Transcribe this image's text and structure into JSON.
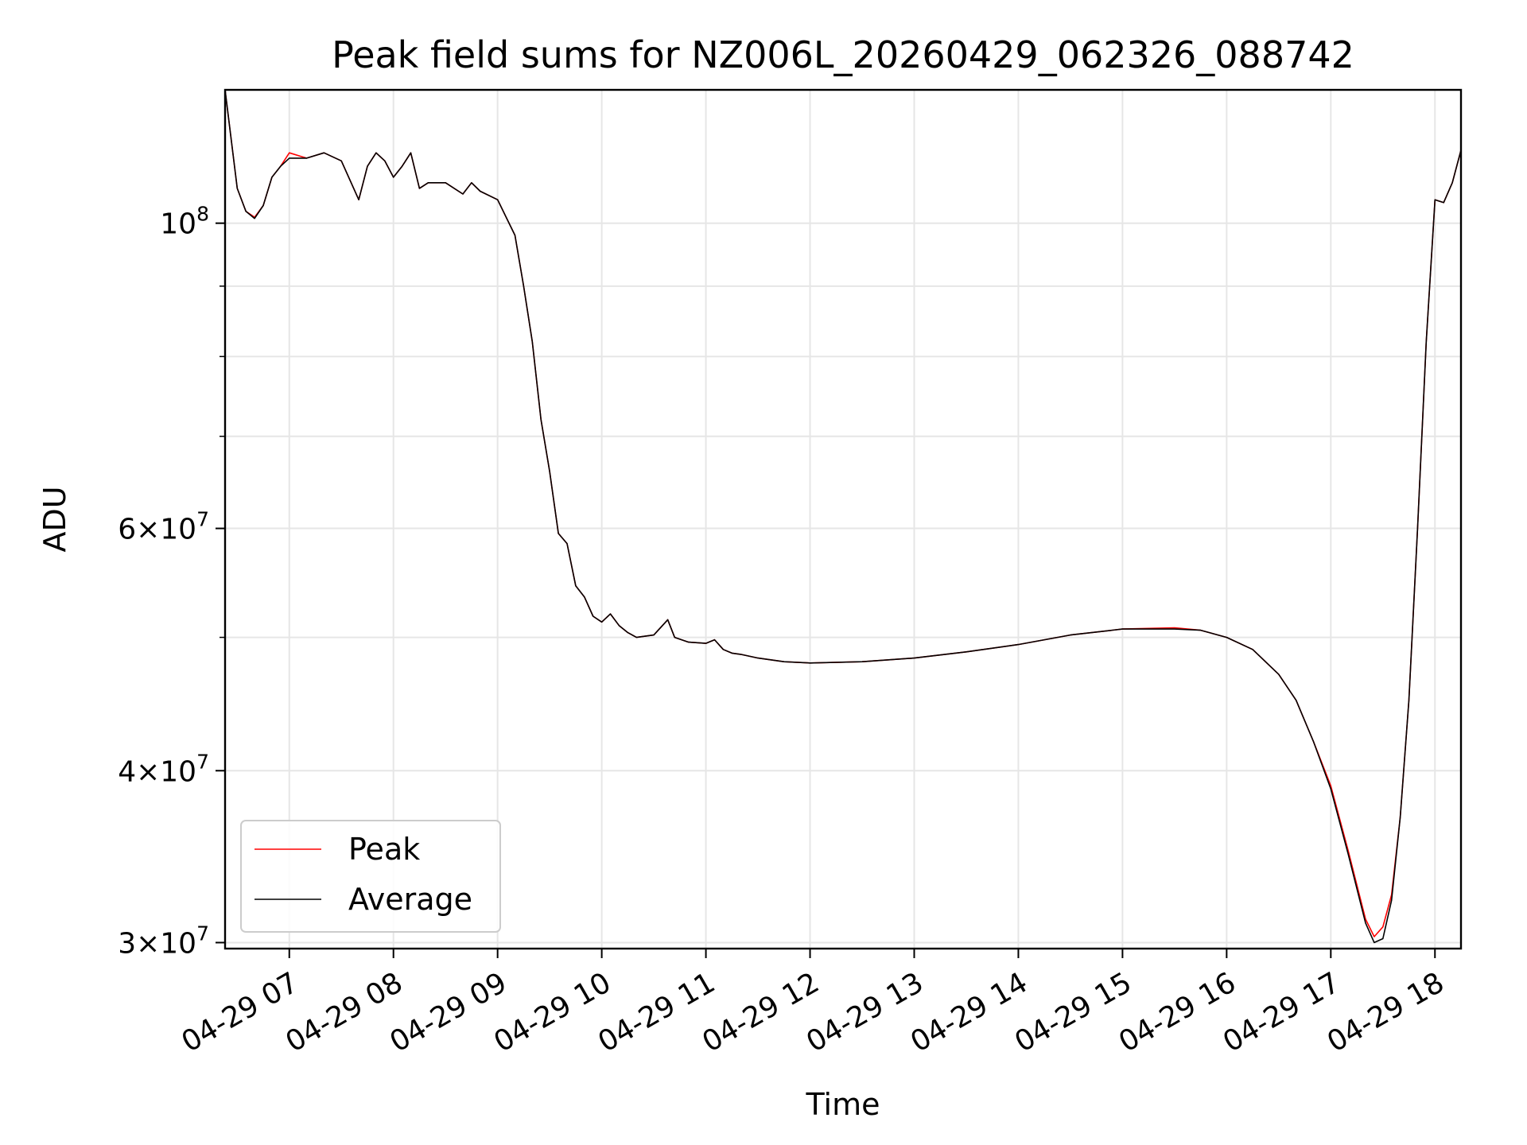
{
  "chart_data": {
    "type": "line",
    "title": "Peak field sums for NZ006L_20260429_062326_088742",
    "xlabel": "Time",
    "ylabel": "ADU",
    "yscale": "log",
    "grid": true,
    "legend_position": "lower-left",
    "xlim": [
      "2026-04-29 06:23",
      "2026-04-29 18:15"
    ],
    "ylim": [
      29700000,
      125000000
    ],
    "x_ticks": [
      {
        "value": "2026-04-29 07:00",
        "label": "04-29 07"
      },
      {
        "value": "2026-04-29 08:00",
        "label": "04-29 08"
      },
      {
        "value": "2026-04-29 09:00",
        "label": "04-29 09"
      },
      {
        "value": "2026-04-29 10:00",
        "label": "04-29 10"
      },
      {
        "value": "2026-04-29 11:00",
        "label": "04-29 11"
      },
      {
        "value": "2026-04-29 12:00",
        "label": "04-29 12"
      },
      {
        "value": "2026-04-29 13:00",
        "label": "04-29 13"
      },
      {
        "value": "2026-04-29 14:00",
        "label": "04-29 14"
      },
      {
        "value": "2026-04-29 15:00",
        "label": "04-29 15"
      },
      {
        "value": "2026-04-29 16:00",
        "label": "04-29 16"
      },
      {
        "value": "2026-04-29 17:00",
        "label": "04-29 17"
      },
      {
        "value": "2026-04-29 18:00",
        "label": "04-29 18"
      }
    ],
    "y_major_ticks": [
      {
        "value": 30000000,
        "mantissa": "3",
        "exponent": "7"
      },
      {
        "value": 40000000,
        "mantissa": "4",
        "exponent": "7"
      },
      {
        "value": 60000000,
        "mantissa": "6",
        "exponent": "7"
      },
      {
        "value": 100000000,
        "mantissa": "",
        "exponent": "8"
      }
    ],
    "y_minor_ticks": [
      50000000,
      70000000,
      80000000,
      90000000
    ],
    "series": [
      {
        "name": "Peak",
        "color": "#ff0000",
        "x": [
          "2026-04-29 06:23",
          "2026-04-29 06:30",
          "2026-04-29 06:35",
          "2026-04-29 06:40",
          "2026-04-29 06:45",
          "2026-04-29 06:50",
          "2026-04-29 06:55",
          "2026-04-29 07:00",
          "2026-04-29 07:10",
          "2026-04-29 07:20",
          "2026-04-29 07:30",
          "2026-04-29 07:40",
          "2026-04-29 07:45",
          "2026-04-29 07:50",
          "2026-04-29 07:55",
          "2026-04-29 08:00",
          "2026-04-29 08:05",
          "2026-04-29 08:10",
          "2026-04-29 08:15",
          "2026-04-29 08:20",
          "2026-04-29 08:30",
          "2026-04-29 08:40",
          "2026-04-29 08:45",
          "2026-04-29 08:50",
          "2026-04-29 09:00",
          "2026-04-29 09:10",
          "2026-04-29 09:15",
          "2026-04-29 09:20",
          "2026-04-29 09:25",
          "2026-04-29 09:30",
          "2026-04-29 09:35",
          "2026-04-29 09:40",
          "2026-04-29 09:45",
          "2026-04-29 09:50",
          "2026-04-29 09:55",
          "2026-04-29 10:00",
          "2026-04-29 10:05",
          "2026-04-29 10:10",
          "2026-04-29 10:15",
          "2026-04-29 10:20",
          "2026-04-29 10:30",
          "2026-04-29 10:38",
          "2026-04-29 10:42",
          "2026-04-29 10:50",
          "2026-04-29 11:00",
          "2026-04-29 11:05",
          "2026-04-29 11:10",
          "2026-04-29 11:15",
          "2026-04-29 11:20",
          "2026-04-29 11:30",
          "2026-04-29 11:45",
          "2026-04-29 12:00",
          "2026-04-29 12:30",
          "2026-04-29 13:00",
          "2026-04-29 13:30",
          "2026-04-29 14:00",
          "2026-04-29 14:30",
          "2026-04-29 15:00",
          "2026-04-29 15:30",
          "2026-04-29 15:45",
          "2026-04-29 16:00",
          "2026-04-29 16:15",
          "2026-04-29 16:30",
          "2026-04-29 16:40",
          "2026-04-29 16:50",
          "2026-04-29 17:00",
          "2026-04-29 17:10",
          "2026-04-29 17:20",
          "2026-04-29 17:25",
          "2026-04-29 17:30",
          "2026-04-29 17:35",
          "2026-04-29 17:40",
          "2026-04-29 17:45",
          "2026-04-29 17:50",
          "2026-04-29 17:55",
          "2026-04-29 18:00",
          "2026-04-29 18:05",
          "2026-04-29 18:10",
          "2026-04-29 18:15"
        ],
        "y": [
          125000000,
          106000000,
          102000000,
          101000000,
          103000000,
          108000000,
          110000000,
          112500000,
          111500000,
          112500000,
          111000000,
          104000000,
          110000000,
          112500000,
          111000000,
          108000000,
          110000000,
          112500000,
          106000000,
          107000000,
          107000000,
          105000000,
          107000000,
          105500000,
          104000000,
          98000000,
          90000000,
          82000000,
          72000000,
          66000000,
          59500000,
          58500000,
          54500000,
          53500000,
          51800000,
          51300000,
          52000000,
          51000000,
          50400000,
          50000000,
          50200000,
          51500000,
          50000000,
          49600000,
          49500000,
          49800000,
          49000000,
          48700000,
          48600000,
          48300000,
          48000000,
          47900000,
          48000000,
          48300000,
          48800000,
          49400000,
          50200000,
          50700000,
          50800000,
          50600000,
          50000000,
          49000000,
          47000000,
          45000000,
          42000000,
          39000000,
          35000000,
          31200000,
          30300000,
          30800000,
          32500000,
          37000000,
          45000000,
          60000000,
          82000000,
          104000000,
          103500000,
          107000000,
          113000000
        ]
      },
      {
        "name": "Average",
        "color": "#000000",
        "x": [
          "2026-04-29 06:23",
          "2026-04-29 06:30",
          "2026-04-29 06:35",
          "2026-04-29 06:40",
          "2026-04-29 06:45",
          "2026-04-29 06:50",
          "2026-04-29 06:55",
          "2026-04-29 07:00",
          "2026-04-29 07:10",
          "2026-04-29 07:20",
          "2026-04-29 07:30",
          "2026-04-29 07:40",
          "2026-04-29 07:45",
          "2026-04-29 07:50",
          "2026-04-29 07:55",
          "2026-04-29 08:00",
          "2026-04-29 08:05",
          "2026-04-29 08:10",
          "2026-04-29 08:15",
          "2026-04-29 08:20",
          "2026-04-29 08:30",
          "2026-04-29 08:40",
          "2026-04-29 08:45",
          "2026-04-29 08:50",
          "2026-04-29 09:00",
          "2026-04-29 09:10",
          "2026-04-29 09:15",
          "2026-04-29 09:20",
          "2026-04-29 09:25",
          "2026-04-29 09:30",
          "2026-04-29 09:35",
          "2026-04-29 09:40",
          "2026-04-29 09:45",
          "2026-04-29 09:50",
          "2026-04-29 09:55",
          "2026-04-29 10:00",
          "2026-04-29 10:05",
          "2026-04-29 10:10",
          "2026-04-29 10:15",
          "2026-04-29 10:20",
          "2026-04-29 10:30",
          "2026-04-29 10:38",
          "2026-04-29 10:42",
          "2026-04-29 10:50",
          "2026-04-29 11:00",
          "2026-04-29 11:05",
          "2026-04-29 11:10",
          "2026-04-29 11:15",
          "2026-04-29 11:20",
          "2026-04-29 11:30",
          "2026-04-29 11:45",
          "2026-04-29 12:00",
          "2026-04-29 12:30",
          "2026-04-29 13:00",
          "2026-04-29 13:30",
          "2026-04-29 14:00",
          "2026-04-29 14:30",
          "2026-04-29 15:00",
          "2026-04-29 15:30",
          "2026-04-29 15:45",
          "2026-04-29 16:00",
          "2026-04-29 16:15",
          "2026-04-29 16:30",
          "2026-04-29 16:40",
          "2026-04-29 16:50",
          "2026-04-29 17:00",
          "2026-04-29 17:10",
          "2026-04-29 17:20",
          "2026-04-29 17:25",
          "2026-04-29 17:30",
          "2026-04-29 17:35",
          "2026-04-29 17:40",
          "2026-04-29 17:45",
          "2026-04-29 17:50",
          "2026-04-29 17:55",
          "2026-04-29 18:00",
          "2026-04-29 18:05",
          "2026-04-29 18:10",
          "2026-04-29 18:15"
        ],
        "y": [
          125000000,
          106000000,
          102000000,
          100800000,
          103000000,
          108000000,
          110000000,
          111500000,
          111500000,
          112500000,
          111000000,
          104000000,
          110000000,
          112500000,
          111000000,
          108000000,
          110000000,
          112500000,
          106000000,
          107000000,
          107000000,
          105000000,
          107000000,
          105500000,
          104000000,
          98000000,
          90000000,
          82000000,
          72000000,
          66000000,
          59500000,
          58500000,
          54500000,
          53500000,
          51800000,
          51300000,
          52000000,
          51000000,
          50400000,
          50000000,
          50200000,
          51500000,
          50000000,
          49600000,
          49500000,
          49800000,
          49000000,
          48700000,
          48600000,
          48300000,
          48000000,
          47900000,
          48000000,
          48300000,
          48800000,
          49400000,
          50200000,
          50700000,
          50700000,
          50600000,
          50000000,
          49000000,
          47000000,
          45000000,
          42000000,
          38800000,
          34800000,
          31000000,
          30000000,
          30200000,
          32200000,
          37000000,
          45000000,
          60000000,
          82000000,
          104000000,
          103500000,
          107000000,
          113000000
        ]
      }
    ]
  }
}
